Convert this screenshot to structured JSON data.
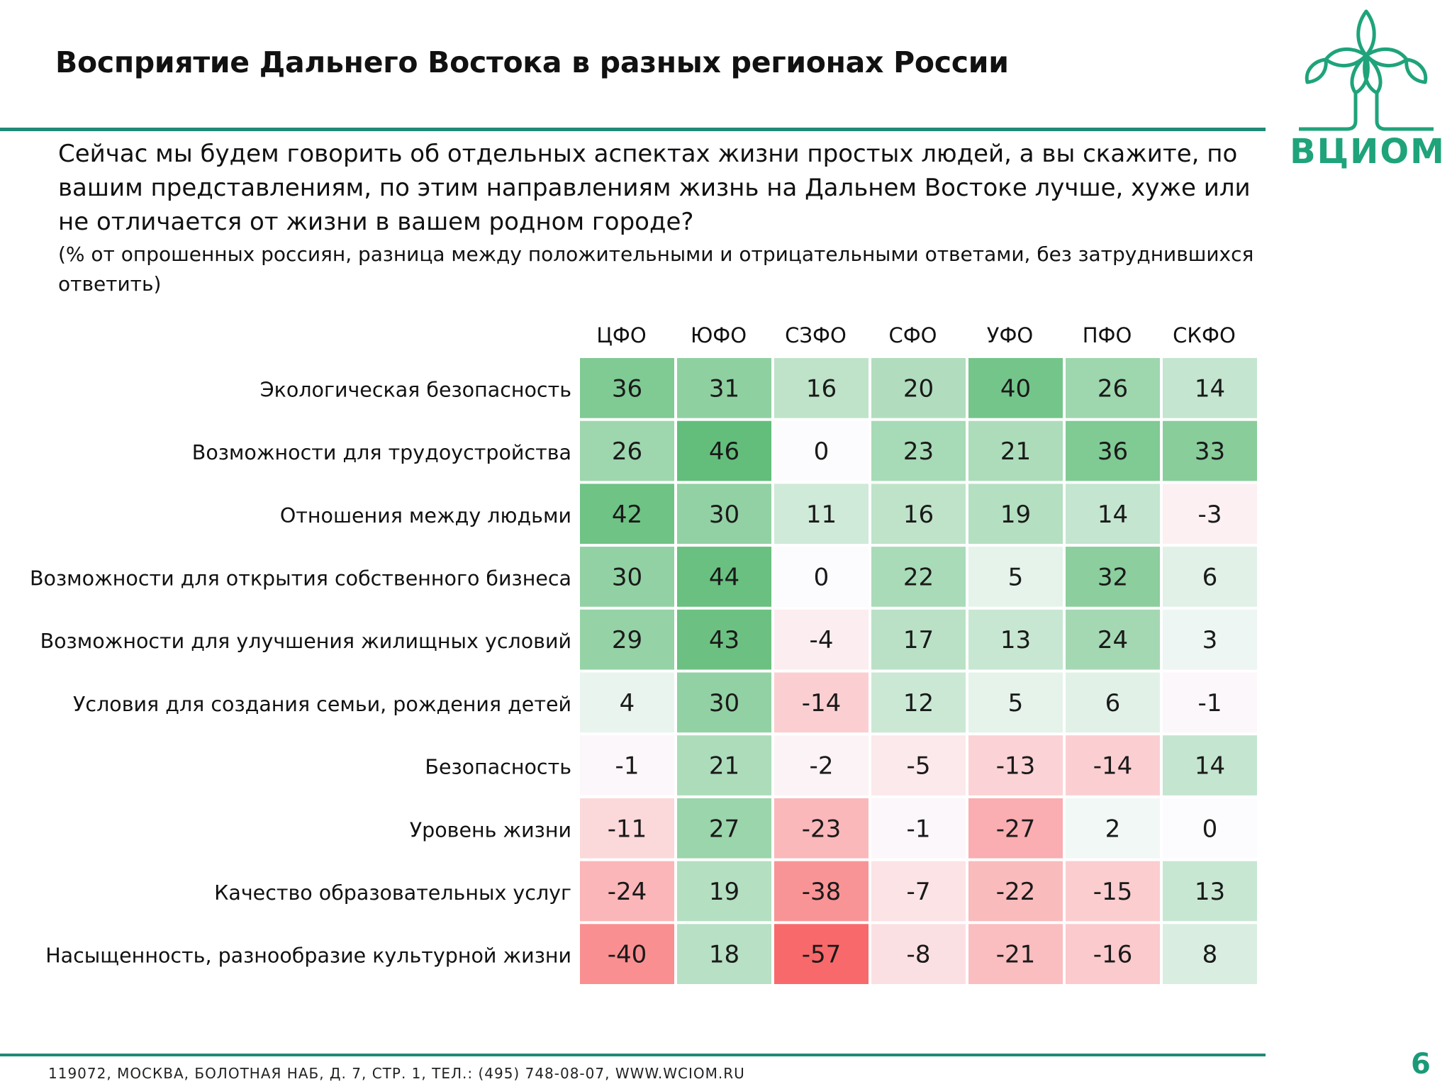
{
  "header": {
    "title": "Восприятие Дальнего Востока в разных регионах России",
    "question": "Сейчас мы будем говорить об отдельных аспектах жизни простых людей, а вы скажите, по вашим представлениям, по этим направлениям жизнь на Дальнем Востоке лучше, хуже или не отличается от жизни в вашем родном городе?",
    "note": "(% от опрошенных россиян, разница между положительными и отрицательными ответами, без затруднившихся ответить)"
  },
  "logo": {
    "text": "ВЦИОМ",
    "brand_color": "#1fa37a"
  },
  "colors": {
    "rule": "#1f8a78",
    "positive": "#63be7b",
    "negative": "#f8696b",
    "neutral": "#fcfcff"
  },
  "chart_data": {
    "type": "heatmap",
    "columns": [
      "ЦФО",
      "ЮФО",
      "СЗФО",
      "СФО",
      "УФО",
      "ПФО",
      "СКФО"
    ],
    "rows": [
      "Экологическая безопасность",
      "Возможности для трудоустройства",
      "Отношения между людьми",
      "Возможности для открытия собственного бизнеса",
      "Возможности для улучшения жилищных условий",
      "Условия для создания семьи, рождения детей",
      "Безопасность",
      "Уровень жизни",
      "Качество образовательных услуг",
      "Насыщенность, разнообразие культурной жизни"
    ],
    "values": [
      [
        36,
        31,
        16,
        20,
        40,
        26,
        14
      ],
      [
        26,
        46,
        0,
        23,
        21,
        36,
        33
      ],
      [
        42,
        30,
        11,
        16,
        19,
        14,
        -3
      ],
      [
        30,
        44,
        0,
        22,
        5,
        32,
        6
      ],
      [
        29,
        43,
        -4,
        17,
        13,
        24,
        3
      ],
      [
        4,
        30,
        -14,
        12,
        5,
        6,
        -1
      ],
      [
        -1,
        21,
        -2,
        -5,
        -13,
        -14,
        14
      ],
      [
        -11,
        27,
        -23,
        -1,
        -27,
        2,
        0
      ],
      [
        -24,
        19,
        -38,
        -7,
        -22,
        -15,
        13
      ],
      [
        -40,
        18,
        -57,
        -8,
        -21,
        -16,
        8
      ]
    ]
  },
  "footer": {
    "address": "119072, МОСКВА, БОЛОТНАЯ НАБ, Д. 7, СТР. 1, ТЕЛ.: (495) 748-08-07, WWW.WCIOM.RU",
    "page_number": "6"
  }
}
